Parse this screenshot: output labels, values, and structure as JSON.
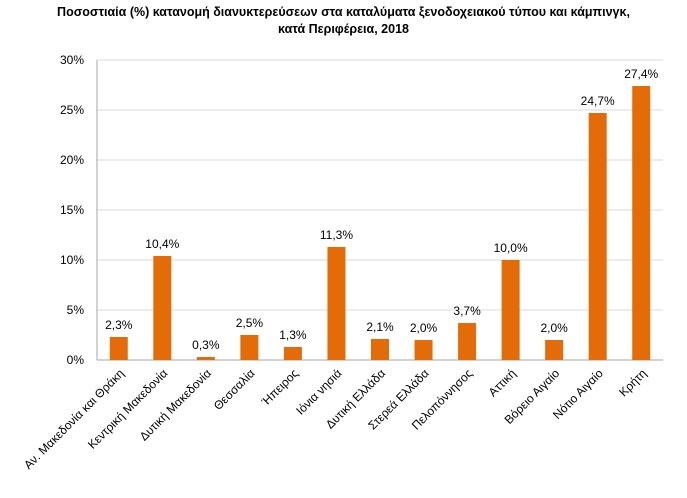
{
  "chart_data": {
    "type": "bar",
    "title": [
      "Ποσοστιαία (%) κατανομή διανυκτερεύσεων στα καταλύματα ξενοδοχειακού τύπου και κάμπινγκ,",
      "κατά Περιφέρεια, 2018"
    ],
    "xlabel": "",
    "ylabel": "",
    "categories": [
      "Αν. Μακεδονία και Θράκη",
      "Κεντρική Μακεδονία",
      "Δυτική Μακεδονία",
      "Θεσσαλία",
      "Ήπειρος",
      "Ιόνια νησιά",
      "Δυτική Ελλάδα",
      "Στερεά Ελλάδα",
      "Πελοπόννησος",
      "Αττική",
      "Βόρειο Αιγαίο",
      "Νότιο Αιγαίο",
      "Κρήτη"
    ],
    "values": [
      2.3,
      10.4,
      0.3,
      2.5,
      1.3,
      11.3,
      2.1,
      2.0,
      3.7,
      10.0,
      2.0,
      24.7,
      27.4
    ],
    "data_labels": [
      "2,3%",
      "10,4%",
      "0,3%",
      "2,5%",
      "1,3%",
      "11,3%",
      "2,1%",
      "2,0%",
      "3,7%",
      "10,0%",
      "2,0%",
      "24,7%",
      "27,4%"
    ],
    "ylim": [
      0,
      30
    ],
    "yticks": [
      0,
      5,
      10,
      15,
      20,
      25,
      30
    ],
    "ytick_labels": [
      "0%",
      "5%",
      "10%",
      "15%",
      "20%",
      "25%",
      "30%"
    ],
    "grid": true,
    "legend": "none",
    "colors": {
      "bar": "#E36C09",
      "grid": "#D9D9D9",
      "axis": "#A6A6A6"
    }
  }
}
